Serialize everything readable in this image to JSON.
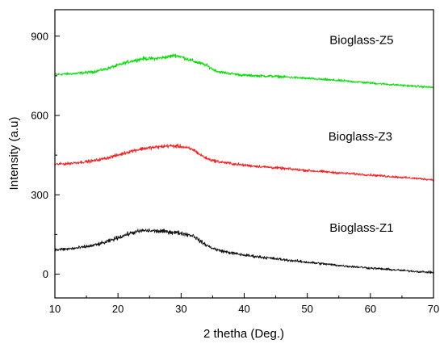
{
  "chart_data": {
    "type": "line",
    "title": "",
    "xlabel": "2 thetha (Deg.)",
    "ylabel": "Intensity (a.u)",
    "xlim": [
      10,
      70
    ],
    "ylim": [
      -90,
      1000
    ],
    "xticks": [
      10,
      20,
      30,
      40,
      50,
      60,
      70
    ],
    "yticks": [
      0,
      300,
      600,
      900
    ],
    "grid": false,
    "legend": "none",
    "series": [
      {
        "name": "Bioglass-Z5",
        "color": "#00e000",
        "x": [
          10,
          12,
          14,
          16,
          18,
          20,
          22,
          24,
          26,
          28,
          29,
          30,
          32,
          34,
          35,
          36,
          38,
          40,
          42,
          45,
          50,
          55,
          60,
          65,
          70
        ],
        "y": [
          755,
          757,
          760,
          765,
          775,
          790,
          805,
          815,
          815,
          822,
          828,
          822,
          805,
          790,
          775,
          765,
          758,
          752,
          750,
          748,
          740,
          732,
          723,
          714,
          706
        ]
      },
      {
        "name": "Bioglass-Z3",
        "color": "#ff1a1a",
        "x": [
          10,
          12,
          14,
          16,
          18,
          20,
          22,
          24,
          26,
          28,
          30,
          32,
          33,
          34,
          35,
          36,
          38,
          40,
          45,
          50,
          55,
          60,
          65,
          70
        ],
        "y": [
          415,
          418,
          423,
          428,
          438,
          450,
          465,
          475,
          480,
          485,
          483,
          470,
          452,
          438,
          430,
          425,
          418,
          412,
          402,
          392,
          383,
          375,
          366,
          357
        ]
      },
      {
        "name": "Bioglass-Z1",
        "color": "#111111",
        "x": [
          10,
          12,
          14,
          16,
          18,
          20,
          22,
          24,
          26,
          28,
          30,
          32,
          33,
          34,
          35,
          36,
          38,
          40,
          45,
          50,
          55,
          60,
          65,
          70
        ],
        "y": [
          92,
          95,
          100,
          108,
          120,
          138,
          155,
          165,
          163,
          160,
          155,
          145,
          125,
          110,
          98,
          90,
          80,
          72,
          58,
          45,
          33,
          23,
          14,
          6
        ]
      }
    ]
  }
}
